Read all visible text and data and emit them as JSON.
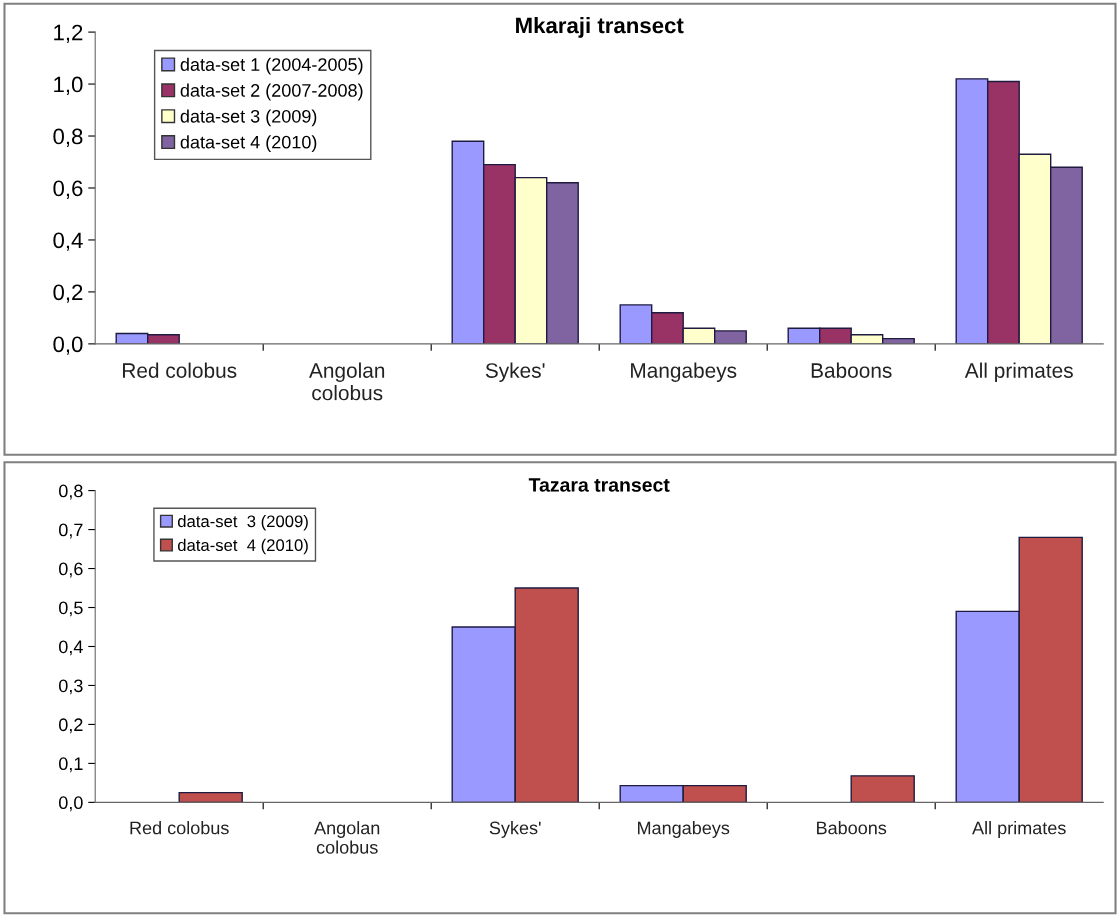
{
  "chart_data": [
    {
      "type": "bar",
      "title": "Mkaraji transect",
      "categories": [
        "Red colobus",
        "Angolan\ncolobus",
        "Sykes'",
        "Mangabeys",
        "Baboons",
        "All primates"
      ],
      "series": [
        {
          "name": "data-set 1 (2004-2005)",
          "color": "#9999ff",
          "values": [
            0.04,
            0,
            0.78,
            0.15,
            0.06,
            1.02
          ]
        },
        {
          "name": "data-set 2 (2007-2008)",
          "color": "#993366",
          "values": [
            0.035,
            0,
            0.69,
            0.12,
            0.06,
            1.01
          ]
        },
        {
          "name": "data-set 3 (2009)",
          "color": "#ffffcc",
          "values": [
            0,
            0,
            0.64,
            0.06,
            0.035,
            0.73
          ]
        },
        {
          "name": "data-set 4 (2010)",
          "color": "#8064a2",
          "values": [
            0,
            0,
            0.62,
            0.05,
            0.02,
            0.68
          ]
        }
      ],
      "ylim": [
        0,
        1.2
      ],
      "yticks": [
        {
          "value": 0,
          "label": "0,0"
        },
        {
          "value": 0.2,
          "label": "0,2"
        },
        {
          "value": 0.4,
          "label": "0,4"
        },
        {
          "value": 0.6,
          "label": "0,6"
        },
        {
          "value": 0.8,
          "label": "0,8"
        },
        {
          "value": 1.0,
          "label": "1,0"
        },
        {
          "value": 1.2,
          "label": "1,2"
        }
      ],
      "legend": "top left",
      "grid": false
    },
    {
      "type": "bar",
      "title": "Tazara transect",
      "categories": [
        "Red colobus",
        "Angolan\ncolobus",
        "Sykes'",
        "Mangabeys",
        "Baboons",
        "All primates"
      ],
      "series": [
        {
          "name": "data-set  3 (2009)",
          "color": "#9999ff",
          "values": [
            0,
            0,
            0.45,
            0.043,
            0,
            0.49
          ]
        },
        {
          "name": "data-set  4 (2010)",
          "color": "#c0504d",
          "values": [
            0.025,
            0,
            0.55,
            0.043,
            0.068,
            0.68
          ]
        }
      ],
      "ylim": [
        0,
        0.8
      ],
      "yticks": [
        {
          "value": 0,
          "label": "0,0"
        },
        {
          "value": 0.1,
          "label": "0,1"
        },
        {
          "value": 0.2,
          "label": "0,2"
        },
        {
          "value": 0.3,
          "label": "0,3"
        },
        {
          "value": 0.4,
          "label": "0,4"
        },
        {
          "value": 0.5,
          "label": "0,5"
        },
        {
          "value": 0.6,
          "label": "0,6"
        },
        {
          "value": 0.7,
          "label": "0,7"
        },
        {
          "value": 0.8,
          "label": "0,8"
        }
      ],
      "legend": "top left",
      "grid": false
    }
  ]
}
